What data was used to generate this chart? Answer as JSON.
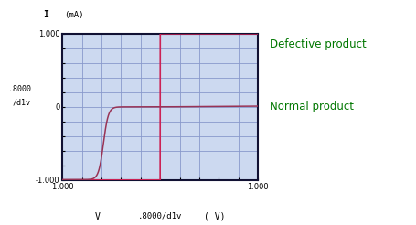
{
  "xlim": [
    -1.0,
    1.0
  ],
  "ylim": [
    -1.0,
    1.0
  ],
  "bg_color": "#ccd9f0",
  "grid_color": "#8899cc",
  "spine_color": "#111133",
  "defective_label": "Defective product",
  "normal_label": "Normal product",
  "label_color": "#007700",
  "defective_color": "#cc2255",
  "normal_color": "#993355",
  "xticks": [
    -1.0,
    -0.8,
    -0.6,
    -0.4,
    -0.2,
    0.0,
    0.2,
    0.4,
    0.6,
    0.8,
    1.0
  ],
  "yticks": [
    -1.0,
    -0.8,
    -0.6,
    -0.4,
    -0.2,
    0.0,
    0.2,
    0.4,
    0.6,
    0.8,
    1.0
  ],
  "figsize": [
    4.55,
    2.46
  ],
  "dpi": 100
}
